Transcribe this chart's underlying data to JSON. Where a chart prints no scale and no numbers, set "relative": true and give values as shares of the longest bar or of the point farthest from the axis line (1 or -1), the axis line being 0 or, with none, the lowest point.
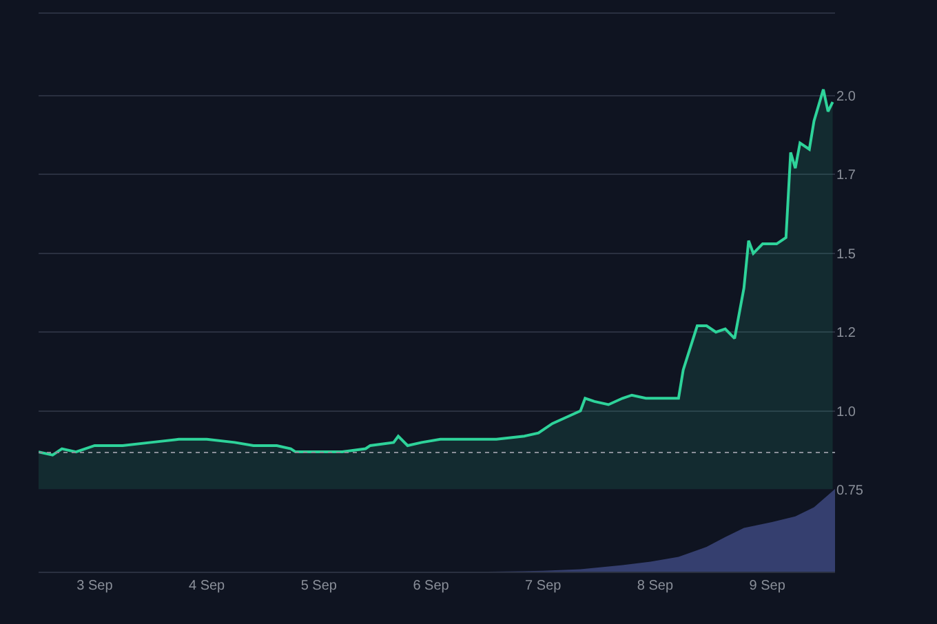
{
  "chart_data": [
    {
      "type": "area",
      "x": [
        "--09-02T12:00",
        "--09-02T15:00",
        "--09-02T17:00",
        "--09-02T20:00",
        "--09-03T00:00",
        "--09-03T06:00",
        "--09-03T12:00",
        "--09-03T18:00",
        "--09-04T00:00",
        "--09-04T06:00",
        "--09-04T10:00",
        "--09-04T15:00",
        "--09-04T18:00",
        "--09-04T19:00",
        "--09-04T23:00",
        "--09-05T05:00",
        "--09-05T10:00",
        "--09-05T11:00",
        "--09-05T16:00",
        "--09-05T17:00",
        "--09-05T19:00",
        "--09-05T22:00",
        "--09-06T02:00",
        "--09-06T08:00",
        "--09-06T14:00",
        "--09-06T20:00",
        "--09-06T23:00",
        "--09-07T02:00",
        "--09-07T05:00",
        "--09-07T08:00",
        "--09-07T09:00",
        "--09-07T11:00",
        "--09-07T14:00",
        "--09-07T17:00",
        "--09-07T19:00",
        "--09-07T22:00",
        "--09-08T01:00",
        "--09-08T05:00",
        "--09-08T06:00",
        "--09-08T09:00",
        "--09-08T11:00",
        "--09-08T13:00",
        "--09-08T15:00",
        "--09-08T17:00",
        "--09-08T19:00",
        "--09-08T20:00",
        "--09-08T21:00",
        "--09-08T23:00",
        "--09-09T02:00",
        "--09-09T04:00",
        "--09-09T05:00",
        "--09-09T06:00",
        "--09-09T07:00",
        "--09-09T09:00",
        "--09-09T10:00",
        "--09-09T12:00",
        "--09-09T13:00",
        "--09-09T14:00"
      ],
      "series": [
        {
          "color": "#2ed39a",
          "values": [
            0.87,
            0.86,
            0.88,
            0.87,
            0.89,
            0.89,
            0.9,
            0.91,
            0.91,
            0.9,
            0.89,
            0.89,
            0.88,
            0.87,
            0.87,
            0.87,
            0.88,
            0.89,
            0.9,
            0.92,
            0.89,
            0.9,
            0.91,
            0.91,
            0.91,
            0.92,
            0.93,
            0.96,
            0.98,
            1.0,
            1.04,
            1.03,
            1.02,
            1.04,
            1.05,
            1.04,
            1.04,
            1.04,
            1.13,
            1.27,
            1.27,
            1.25,
            1.26,
            1.23,
            1.39,
            1.54,
            1.5,
            1.53,
            1.53,
            1.55,
            1.82,
            1.77,
            1.85,
            1.83,
            1.92,
            2.02,
            1.95,
            1.98
          ]
        }
      ],
      "xlim": [
        "--09-02T12:00",
        "--09-09T14:30"
      ],
      "xticks": [
        {
          "value": "--09-03",
          "label": "3 Sep"
        },
        {
          "value": "--09-04",
          "label": "4 Sep"
        },
        {
          "value": "--09-05",
          "label": "5 Sep"
        },
        {
          "value": "--09-06",
          "label": "6 Sep"
        },
        {
          "value": "--09-07",
          "label": "7 Sep"
        },
        {
          "value": "--09-08",
          "label": "8 Sep"
        },
        {
          "value": "--09-09",
          "label": "9 Sep"
        }
      ],
      "ylim": [
        0.49,
        2.26
      ],
      "yticks": [
        0.75,
        {
          "value": 1.0,
          "label": "1.0"
        },
        {
          "value": 1.25,
          "label": "1.2"
        },
        1.5,
        {
          "value": 1.75,
          "label": "1.7"
        },
        {
          "value": 2.0,
          "label": "2.0"
        }
      ],
      "ref_lines": [
        {
          "axis": "y",
          "value": 0.868,
          "color": "#8a8f99",
          "line_style": "dotted"
        }
      ],
      "grid": "y",
      "marker": "none",
      "line_style": "solid"
    },
    {
      "type": "area",
      "relative": true,
      "x": [
        "--09-02T12:00",
        "--09-06T12:00",
        "--09-07T00:00",
        "--09-07T08:00",
        "--09-07T17:00",
        "--09-07T23:00",
        "--09-08T05:00",
        "--09-08T11:00",
        "--09-08T15:00",
        "--09-08T19:00",
        "--09-09T01:00",
        "--09-09T06:00",
        "--09-09T10:00",
        "--09-09T14:30"
      ],
      "series": [
        {
          "color": "#3a4478",
          "values": [
            0,
            0,
            0.01,
            0.03,
            0.08,
            0.12,
            0.18,
            0.3,
            0.42,
            0.53,
            0.6,
            0.67,
            0.78,
            1
          ]
        }
      ],
      "xlim": [
        "--09-02T12:00",
        "--09-09T14:30"
      ]
    }
  ]
}
